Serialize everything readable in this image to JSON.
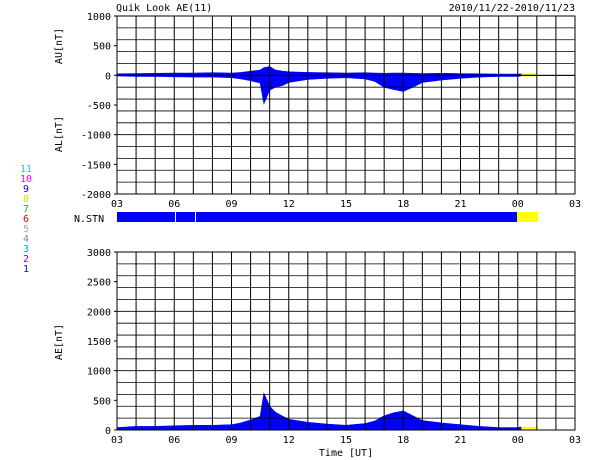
{
  "header": {
    "title": "Quik Look AE(11)",
    "date_range": "2010/11/22-2010/11/23"
  },
  "colors": {
    "data_fill": "#0000ff",
    "provisional_fill": "#ffff00",
    "grid": "#000000",
    "background": "#ffffff"
  },
  "station_legend": [
    {
      "label": "11",
      "color": "#00dddd"
    },
    {
      "label": "10",
      "color": "#ff00ff"
    },
    {
      "label": "9",
      "color": "#0000cc"
    },
    {
      "label": "8",
      "color": "#dddd00"
    },
    {
      "label": "7",
      "color": "#00cc00"
    },
    {
      "label": "6",
      "color": "#ff0000"
    },
    {
      "label": "5",
      "color": "#aaaaaa"
    },
    {
      "label": "4",
      "color": "#888888"
    },
    {
      "label": "3",
      "color": "#00aaaa"
    },
    {
      "label": "2",
      "color": "#aa00aa"
    },
    {
      "label": "1",
      "color": "#0000ff"
    }
  ],
  "nstn": {
    "label": "N.STN"
  },
  "chart_data": [
    {
      "type": "area",
      "name": "AU/AL panel",
      "ylabel_upper": "AU[nT]",
      "ylabel_lower": "AL[nT]",
      "ylim": [
        -2000,
        1000
      ],
      "yticks": [
        1000,
        500,
        0,
        -500,
        -1000,
        -1500,
        -2000
      ],
      "x_tick_labels": [
        "03",
        "06",
        "09",
        "12",
        "15",
        "18",
        "21",
        "00",
        "03"
      ],
      "xlim_hours": [
        3,
        27
      ],
      "grid": true,
      "hours": [
        3,
        4,
        5,
        6,
        7,
        8,
        9,
        9.5,
        10,
        10.5,
        10.7,
        11,
        11.3,
        11.7,
        12,
        13,
        14,
        15,
        16,
        16.5,
        17,
        17.5,
        18,
        18.5,
        19,
        20,
        21,
        22,
        23,
        24,
        24.2,
        25
      ],
      "au": [
        25,
        30,
        35,
        40,
        40,
        45,
        40,
        50,
        70,
        90,
        130,
        150,
        90,
        70,
        60,
        50,
        45,
        40,
        45,
        40,
        35,
        40,
        40,
        35,
        30,
        35,
        30,
        25,
        20,
        20,
        25,
        30
      ],
      "al": [
        -10,
        -20,
        -20,
        -25,
        -30,
        -30,
        -40,
        -60,
        -90,
        -130,
        -480,
        -250,
        -200,
        -170,
        -120,
        -70,
        -50,
        -40,
        -60,
        -100,
        -200,
        -240,
        -270,
        -200,
        -120,
        -80,
        -50,
        -30,
        -20,
        -20,
        -10,
        -10
      ],
      "provisional_from_hour": 24.2
    },
    {
      "type": "area",
      "name": "AE panel",
      "ylabel": "AE[nT]",
      "xlabel": "Time [UT]",
      "ylim": [
        0,
        3000
      ],
      "yticks": [
        3000,
        2500,
        2000,
        1500,
        1000,
        500,
        0
      ],
      "x_tick_labels": [
        "03",
        "06",
        "09",
        "12",
        "15",
        "18",
        "21",
        "00",
        "03"
      ],
      "xlim_hours": [
        3,
        27
      ],
      "grid": true,
      "hours": [
        3,
        4,
        5,
        6,
        7,
        8,
        9,
        9.5,
        10,
        10.5,
        10.7,
        11,
        11.3,
        11.7,
        12,
        13,
        14,
        15,
        16,
        16.5,
        17,
        17.5,
        18,
        18.5,
        19,
        20,
        21,
        22,
        23,
        24,
        24.2,
        25
      ],
      "ae": [
        40,
        60,
        60,
        70,
        80,
        80,
        90,
        120,
        170,
        230,
        620,
        400,
        300,
        230,
        180,
        130,
        100,
        80,
        110,
        150,
        240,
        290,
        320,
        240,
        160,
        120,
        90,
        60,
        40,
        40,
        50,
        50
      ],
      "provisional_from_hour": 24.2
    }
  ]
}
